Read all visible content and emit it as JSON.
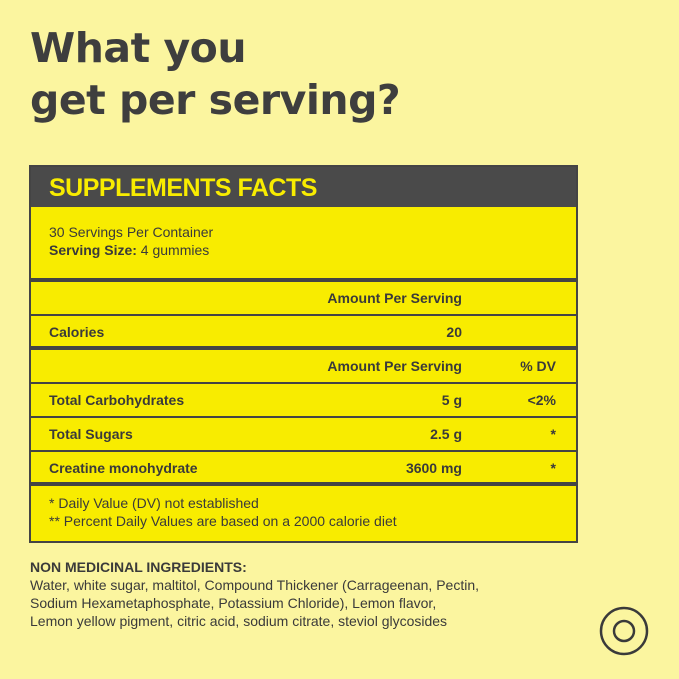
{
  "headline": {
    "line1": "What you",
    "line2": "get per serving?"
  },
  "facts": {
    "title": "SUPPLEMENTS FACTS",
    "servings_per_container": "30 Servings Per Container",
    "serving_size_label": "Serving Size:",
    "serving_size_value": " 4 gummies",
    "amount_header_1": "Amount Per Serving",
    "calories_label": "Calories",
    "calories_value": "20",
    "amount_header_2": "Amount Per Serving",
    "dv_header": "% DV",
    "rows": [
      {
        "name": "Total Carbohydrates",
        "amount": "5 g",
        "dv": "<2%"
      },
      {
        "name": "Total Sugars",
        "amount": "2.5 g",
        "dv": "*"
      },
      {
        "name": "Creatine monohydrate",
        "amount": "3600 mg",
        "dv": "*"
      }
    ],
    "note_1": "* Daily Value (DV) not established",
    "note_2": "** Percent Daily Values are based on a 2000 calorie diet"
  },
  "ingredients": {
    "title": "NON MEDICINAL INGREDIENTS:",
    "line1": "Water, white sugar, maltitol, Compound Thickener (Carrageenan, Pectin,",
    "line2": "Sodium Hexametaphosphate, Potassium Chloride), Lemon flavor,",
    "line3": "Lemon yellow pigment, citric acid, sodium citrate, steviol glycosides"
  },
  "icons": {
    "corner": "target-icon"
  },
  "colors": {
    "background": "#fbf59f",
    "panel": "#f8ec00",
    "dark": "#4a4a4a"
  }
}
